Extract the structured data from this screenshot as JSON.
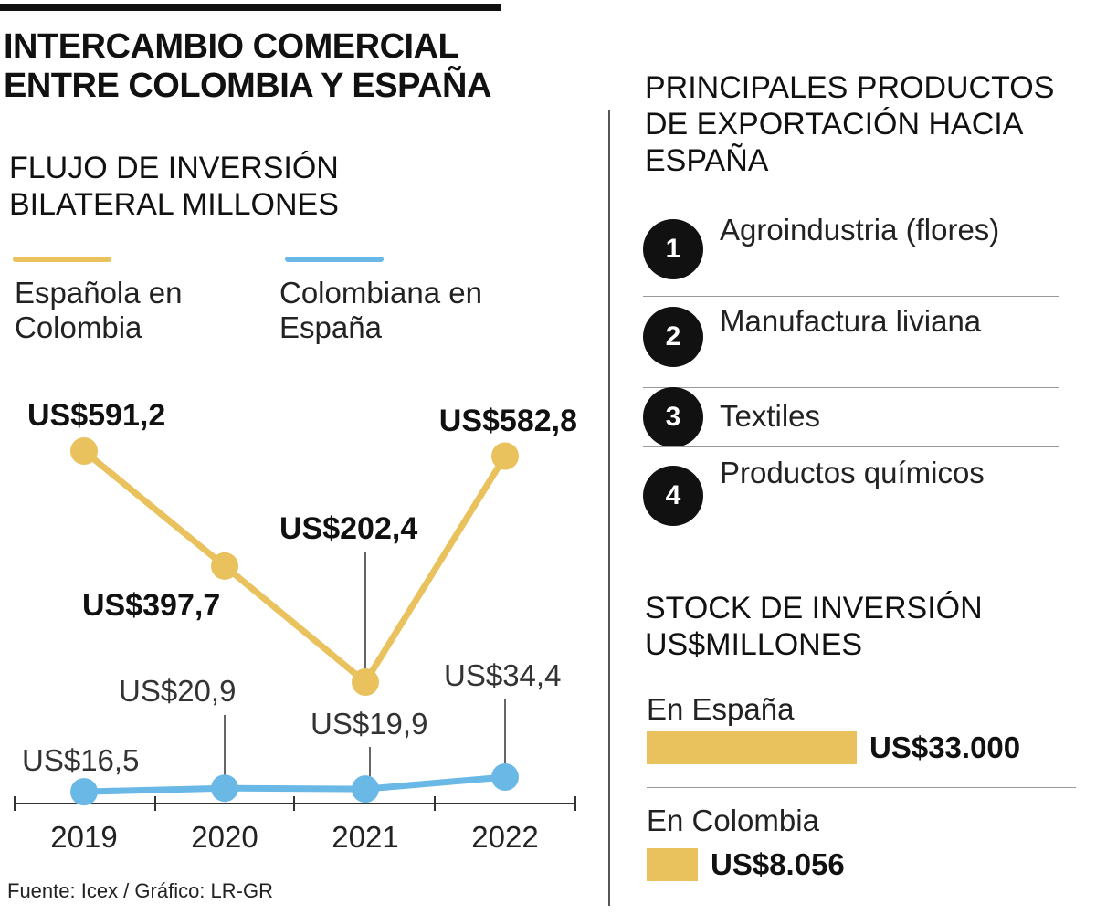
{
  "title": "INTERCAMBIO COMERCIAL ENTRE COLOMBIA Y ESPAÑA",
  "source": "Fuente: Icex / Gráfico: LR-GR",
  "colors": {
    "espanola": "#e9c25e",
    "colombiana": "#6ab8e6",
    "text": "#111111"
  },
  "flow_section": {
    "title": "FLUJO DE INVERSIÓN BILATERAL MILLONES",
    "legend": [
      {
        "label": "Española en Colombia",
        "color": "#e9c25e"
      },
      {
        "label": "Colombiana en España",
        "color": "#6ab8e6"
      }
    ]
  },
  "chart_data": {
    "type": "line",
    "title": "FLUJO DE INVERSIÓN BILATERAL MILLONES",
    "x": [
      "2019",
      "2020",
      "2021",
      "2022"
    ],
    "series": [
      {
        "name": "Española en Colombia",
        "color": "#e9c25e",
        "values": [
          591.2,
          397.7,
          202.4,
          582.8
        ],
        "labels": [
          "US$591,2",
          "US$397,7",
          "US$202,4",
          "US$582,8"
        ]
      },
      {
        "name": "Colombiana en España",
        "color": "#6ab8e6",
        "values": [
          16.5,
          20.9,
          19.9,
          34.4
        ],
        "labels": [
          "US$16,5",
          "US$20,9",
          "US$19,9",
          "US$34,4"
        ]
      }
    ],
    "grid": false,
    "legend_position": "top"
  },
  "products_section": {
    "title": "PRINCIPALES PRODUCTOS DE EXPORTACIÓN HACIA ESPAÑA",
    "items": [
      {
        "number": "1",
        "label": "Agroindustria (flores)"
      },
      {
        "number": "2",
        "label": "Manufactura liviana"
      },
      {
        "number": "3",
        "label": "Textiles"
      },
      {
        "number": "4",
        "label": "Productos químicos"
      }
    ]
  },
  "stock_section": {
    "title": "STOCK DE INVERSIÓN US$MILLONES",
    "max": 33000,
    "items": [
      {
        "label": "En España",
        "value": 33000,
        "value_label": "US$33.000"
      },
      {
        "label": "En Colombia",
        "value": 8056,
        "value_label": "US$8.056"
      }
    ]
  }
}
